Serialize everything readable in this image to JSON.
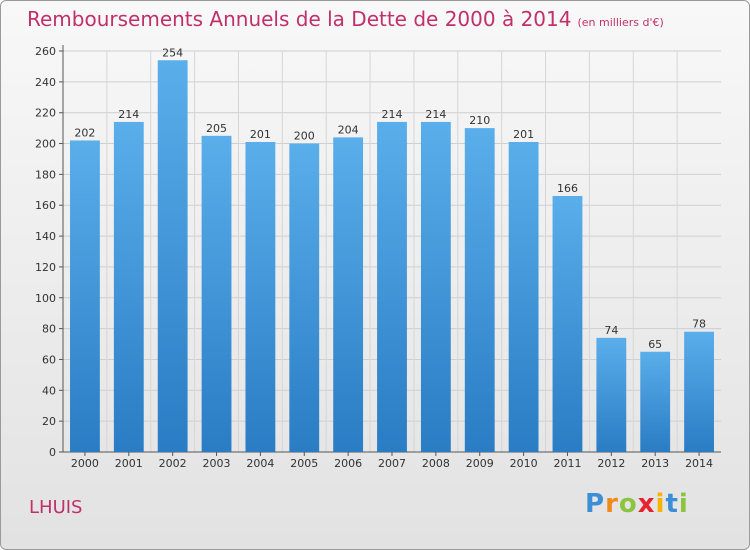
{
  "chart_data": {
    "type": "bar",
    "title": "Remboursements Annuels de la Dette de 2000 à 2014",
    "unit": "(en milliers d'€)",
    "categories": [
      "2000",
      "2001",
      "2002",
      "2003",
      "2004",
      "2005",
      "2006",
      "2007",
      "2008",
      "2009",
      "2010",
      "2011",
      "2012",
      "2013",
      "2014"
    ],
    "values": [
      202,
      214,
      254,
      205,
      201,
      200,
      204,
      214,
      214,
      210,
      201,
      166,
      74,
      65,
      78
    ],
    "ylim": [
      0,
      260
    ],
    "yticks": [
      0,
      20,
      40,
      60,
      80,
      100,
      120,
      140,
      160,
      180,
      200,
      220,
      240,
      260
    ],
    "grid": true,
    "bar_color_top": "#5aaeea",
    "bar_color_bottom": "#2a7cc4"
  },
  "place": "LHUIS",
  "logo": {
    "letters": [
      "P",
      "r",
      "o",
      "x",
      "i",
      "t",
      "i"
    ],
    "colors": [
      "#3a8fd6",
      "#f08a1c",
      "#8bc53f",
      "#e8212e",
      "#f5b400",
      "#3a8fd6",
      "#8bc53f"
    ]
  }
}
